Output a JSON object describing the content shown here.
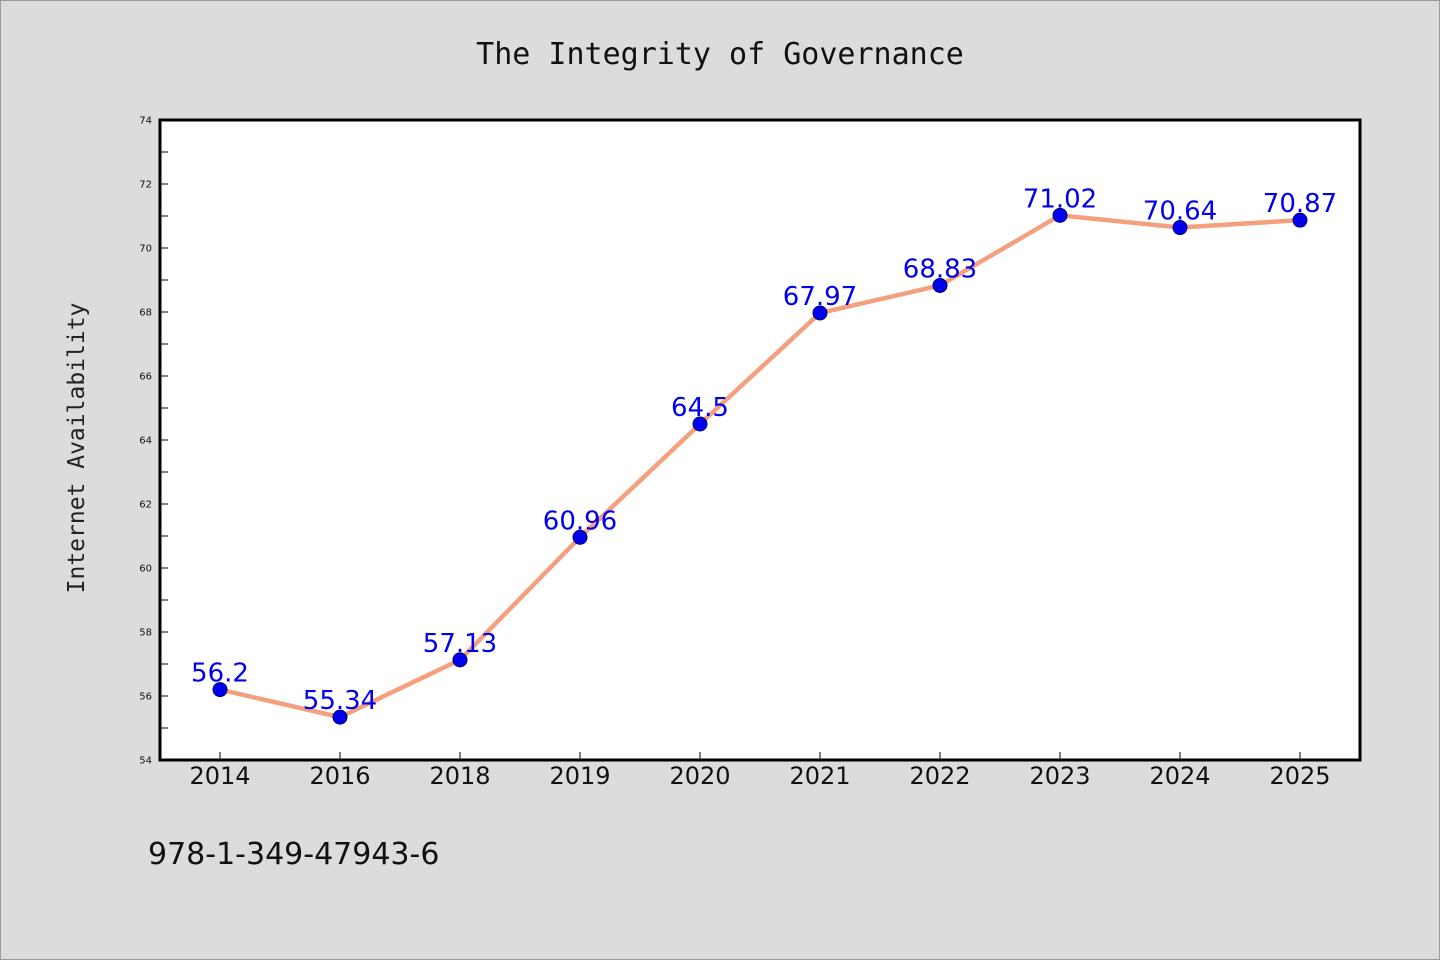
{
  "chart_data": {
    "type": "line",
    "title": "The Integrity of Governance",
    "xlabel": "",
    "ylabel": "Internet Availability",
    "categories": [
      "2014",
      "2016",
      "2018",
      "2019",
      "2020",
      "2021",
      "2022",
      "2023",
      "2024",
      "2025"
    ],
    "series": [
      {
        "values": [
          56.2,
          55.34,
          57.13,
          60.96,
          64.5,
          67.97,
          68.83,
          71.02,
          70.64,
          70.87
        ],
        "data_labels": [
          "56.2",
          "55.34",
          "57.13",
          "60.96",
          "64.5",
          "67.97",
          "68.83",
          "71.02",
          "70.64",
          "70.87"
        ]
      }
    ],
    "ylim": [
      54,
      74
    ],
    "yticks": [
      "54",
      "56",
      "58",
      "60",
      "62",
      "64",
      "66",
      "68",
      "70",
      "72",
      "74"
    ],
    "grid": false,
    "legend": "none",
    "colors": {
      "line": "#f4a07f",
      "marker_fill": "#0000ee",
      "marker_edge": "#000066",
      "data_label": "#0000ee",
      "plot_background": "#ffffff",
      "figure_background": "#dcdcdc"
    }
  },
  "footnote": "978-1-349-47943-6"
}
